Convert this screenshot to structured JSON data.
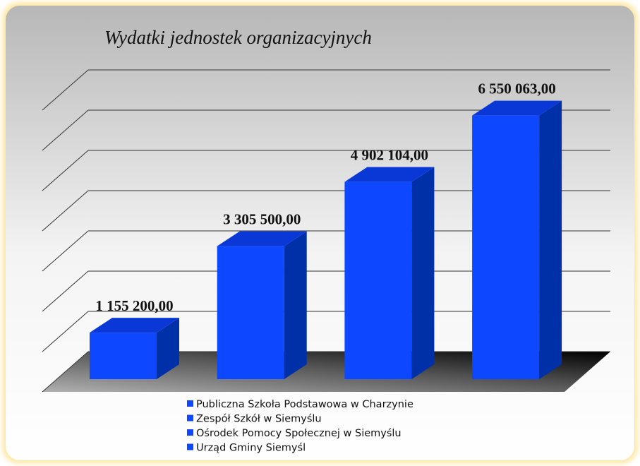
{
  "chart_data": {
    "type": "bar3d",
    "title": "Wydatki jednostek organizacyjnych",
    "categories": [
      "Publiczna Szkoła Podstawowa w Charzynie",
      "Zespół Szkół w Siemyślu",
      "Ośrodek Pomocy Społecznej w Siemyślu",
      "Urząd Gminy Siemyśl"
    ],
    "values": [
      1155200,
      3305500,
      4902104,
      6550063
    ],
    "value_labels": [
      "1 155 200,00",
      "3 305 500,00",
      "4 902 104,00",
      "6 550 063,00"
    ],
    "color": "#0d47ff",
    "ylim": [
      0,
      7000000
    ],
    "yticks": [
      0,
      1000000,
      2000000,
      3000000,
      4000000,
      5000000,
      6000000,
      7000000
    ],
    "grid": true,
    "legend": "bottom"
  }
}
